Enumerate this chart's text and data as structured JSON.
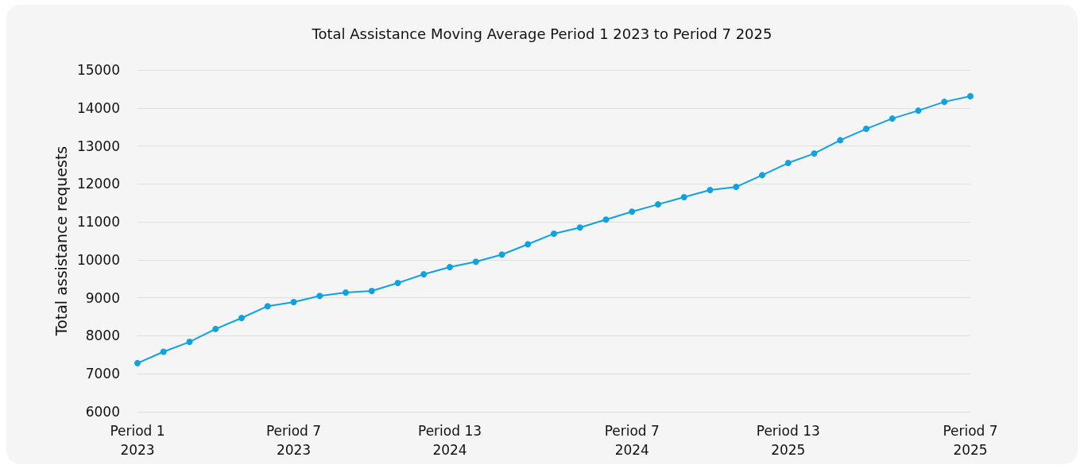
{
  "chart_data": {
    "type": "line",
    "title": "Total Assistance Moving Average Period 1 2023 to Period 7 2025",
    "ylabel": "Total assistance requests",
    "categories": [
      "Period 1\n2023",
      null,
      null,
      null,
      null,
      null,
      "Period 7\n2023",
      null,
      null,
      null,
      null,
      null,
      "Period 13\n2024",
      null,
      null,
      null,
      null,
      null,
      null,
      "Period 7\n2024",
      null,
      null,
      null,
      null,
      null,
      "Period 13\n2025",
      null,
      null,
      null,
      null,
      null,
      null,
      "Period 7\n2025"
    ],
    "series": [
      {
        "color": "#0ea3e0",
        "values": [
          7280,
          7580,
          7840,
          8180,
          8470,
          8780,
          8890,
          9050,
          9140,
          9180,
          9390,
          9620,
          9810,
          9950,
          10140,
          10410,
          10690,
          10850,
          11060,
          11270,
          11460,
          11650,
          11840,
          11920,
          12230,
          12550,
          12800,
          13150,
          13450,
          13720,
          13930,
          14160,
          14310
        ]
      }
    ],
    "ylim": [
      6000,
      15000
    ],
    "yticks": [
      6000,
      7000,
      8000,
      9000,
      10000,
      11000,
      12000,
      13000,
      14000,
      15000
    ],
    "grid": "y",
    "marker": "circle",
    "line_style": "solid"
  }
}
